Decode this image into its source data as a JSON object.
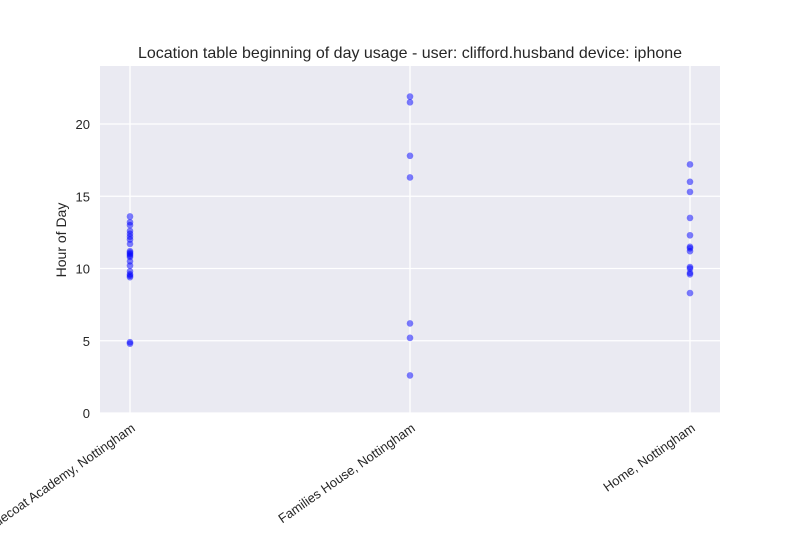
{
  "chart_data": {
    "type": "scatter",
    "title": "Location table beginning of day usage -  user: clifford.husband device: iphone",
    "xlabel": "",
    "ylabel": "Hour of Day",
    "categories": [
      "Bluecoat Academy, Nottingham",
      "Families House, Nottingham",
      "Home, Nottingham"
    ],
    "ylim": [
      0,
      24
    ],
    "yticks": [
      0,
      5,
      10,
      15,
      20
    ],
    "grid": true,
    "legend": "none",
    "colors": {
      "point": "#0000ff",
      "plot_bg": "#eaeaf2",
      "grid": "#ffffff"
    },
    "series": [
      {
        "category": "Bluecoat Academy, Nottingham",
        "values": [
          13.6,
          13.2,
          13.0,
          12.6,
          12.4,
          12.2,
          12.0,
          11.7,
          11.2,
          11.1,
          11.0,
          10.9,
          10.8,
          10.5,
          10.2,
          9.8,
          9.6,
          9.5,
          9.4,
          4.9,
          4.8
        ]
      },
      {
        "category": "Families House, Nottingham",
        "values": [
          21.9,
          21.5,
          17.8,
          16.3,
          6.2,
          5.2,
          2.6
        ]
      },
      {
        "category": "Home, Nottingham",
        "values": [
          17.2,
          16.0,
          15.3,
          13.5,
          12.3,
          11.5,
          11.4,
          11.2,
          10.1,
          10.0,
          9.7,
          9.6,
          8.3
        ]
      }
    ]
  }
}
